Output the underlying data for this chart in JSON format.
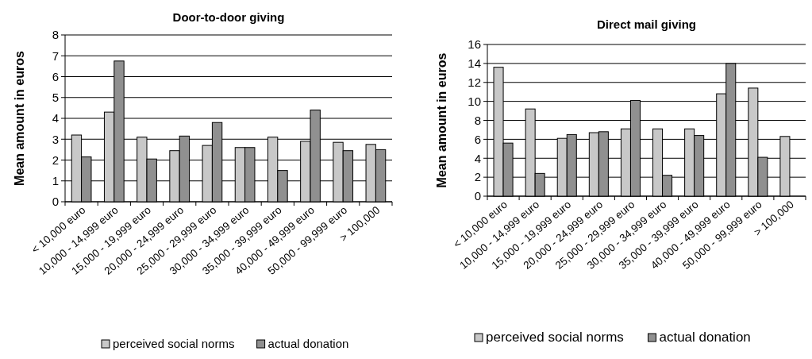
{
  "chart_data": [
    {
      "type": "bar",
      "title": "Door-to-door giving",
      "ylabel": "Mean amount in euros",
      "categories": [
        "< 10,000 euro",
        "10,000 - 14,999 euro",
        "15,000 - 19,999 euro",
        "20,000 - 24,999 euro",
        "25,000 - 29,999 euro",
        "30,000 - 34,999 euro",
        "35,000 - 39,999 euro",
        "40,000 - 49,999 euro",
        "50,000 - 99,999 euro",
        "> 100,000"
      ],
      "series": [
        {
          "name": "perceived social norms",
          "color": "#c8c8c8",
          "values": [
            3.2,
            4.3,
            3.1,
            2.45,
            2.7,
            2.6,
            3.1,
            2.9,
            2.85,
            2.75
          ]
        },
        {
          "name": "actual donation",
          "color": "#909090",
          "values": [
            2.15,
            6.75,
            2.05,
            3.15,
            3.8,
            2.6,
            1.5,
            4.4,
            2.45,
            2.5
          ]
        }
      ],
      "ylim": [
        0,
        8
      ],
      "yticks": [
        0,
        1,
        2,
        3,
        4,
        5,
        6,
        7,
        8
      ],
      "grid": "y",
      "legend": "bottom"
    },
    {
      "type": "bar",
      "title": "Direct mail giving",
      "ylabel": "Mean amount in euros",
      "categories": [
        "< 10,000 euro",
        "10,000 - 14,999 euro",
        "15,000 - 19,999 euro",
        "20,000 - 24,999 euro",
        "25,000 - 29,999 euro",
        "30,000 - 34,999 euro",
        "35,000 - 39,999 euro",
        "40,000 - 49,999 euro",
        "50,000 - 99,999 euro",
        "> 100,000"
      ],
      "series": [
        {
          "name": "perceived social norms",
          "color": "#c8c8c8",
          "values": [
            13.6,
            9.2,
            6.1,
            6.7,
            7.1,
            7.1,
            7.1,
            10.8,
            11.4,
            6.3
          ]
        },
        {
          "name": "actual donation",
          "color": "#909090",
          "values": [
            5.6,
            2.4,
            6.5,
            6.8,
            10.1,
            2.2,
            6.4,
            14.0,
            4.1,
            null
          ]
        }
      ],
      "ylim": [
        0,
        16
      ],
      "yticks": [
        0,
        2,
        4,
        6,
        8,
        10,
        12,
        14,
        16
      ],
      "grid": "y",
      "legend": "bottom"
    }
  ]
}
